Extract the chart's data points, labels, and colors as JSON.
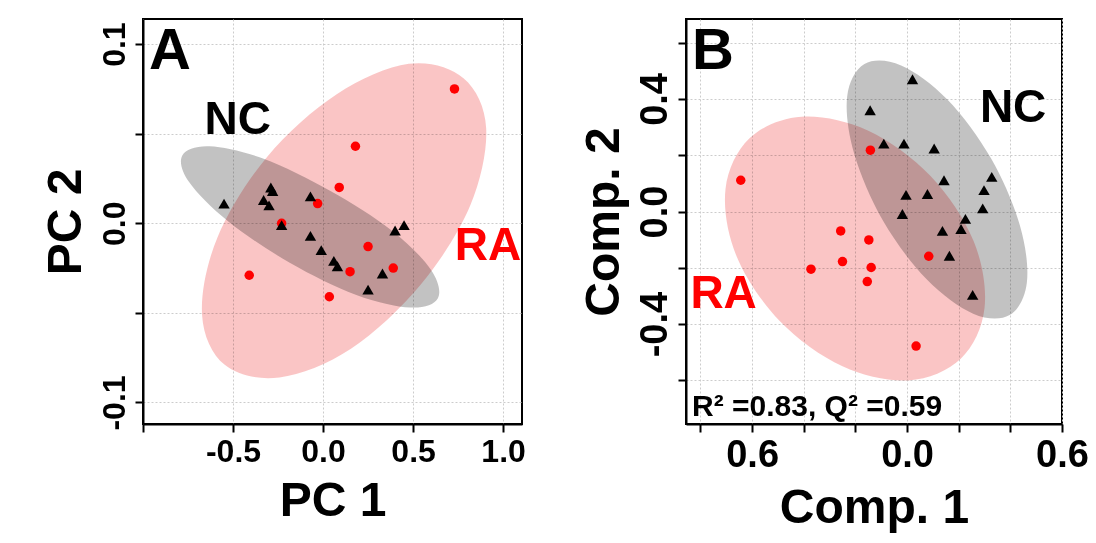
{
  "chart_data": [
    {
      "type": "scatter",
      "xlabel": "PC 1",
      "ylabel": "PC 2",
      "xlim": [
        -1.0,
        1.105
      ],
      "ylim": [
        -0.112,
        0.114
      ],
      "xticks": [
        {
          "value": -1.0,
          "label": null
        },
        -0.5,
        {
          "value": 0,
          "label": "0.0"
        },
        0.5,
        {
          "value": 1.0,
          "label": "1.0"
        }
      ],
      "yticks": [
        -0.1,
        {
          "value": -0.05,
          "label": null
        },
        {
          "value": 0,
          "label": "0.0"
        },
        {
          "value": 0.05,
          "label": null
        },
        0.1
      ],
      "grid": true,
      "annotations": [
        "A"
      ],
      "series": [
        {
          "type": "area",
          "color": "#f9b7b7",
          "x": [
            0.78,
            0.906,
            0.818,
            0.544,
            0.155,
            -0.242,
            -0.546,
            -0.672,
            -0.587,
            -0.311,
            0.076,
            0.476
          ],
          "values": [
            0.081,
            0.053,
            0.01,
            -0.034,
            -0.07,
            -0.086,
            -0.079,
            -0.051,
            -0.008,
            0.037,
            0.072,
            0.089
          ]
        },
        {
          "type": "area",
          "color": "#b3b3b3",
          "x": [
            0.637,
            0.485,
            0.185,
            -0.185,
            -0.526,
            -0.744,
            -0.781,
            -0.63,
            -0.33,
            0.041,
            0.381,
            0.6
          ],
          "values": [
            -0.042,
            -0.047,
            -0.04,
            -0.022,
            0.001,
            0.023,
            0.038,
            0.043,
            0.036,
            0.018,
            -0.004,
            -0.026
          ]
        },
        {
          "name": "RA",
          "marker": "circle",
          "color": "#ff0000",
          "x": [
            0.73,
            0.18,
            0.09,
            -0.03,
            -0.23,
            0.25,
            0.39,
            0.15,
            -0.41,
            0.035
          ],
          "values": [
            0.075,
            0.043,
            0.02,
            0.011,
            0.0,
            -0.013,
            -0.025,
            -0.027,
            -0.029,
            -0.041
          ]
        },
        {
          "name": "NC",
          "marker": "triangle",
          "color": "#000000",
          "x": [
            -0.55,
            -0.29,
            -0.28,
            -0.33,
            -0.3,
            -0.23,
            -0.07,
            -0.07,
            -0.01,
            0.06,
            0.08,
            0.4,
            0.45,
            0.33,
            0.25
          ],
          "values": [
            0.011,
            0.02,
            0.018,
            0.013,
            0.01,
            -0.001,
            0.015,
            -0.007,
            -0.015,
            -0.021,
            -0.024,
            -0.004,
            -0.001,
            -0.028,
            -0.037
          ]
        }
      ]
    },
    {
      "type": "scatter",
      "xlabel": "Comp. 1",
      "ylabel": "Comp. 2",
      "xlim": [
        -0.856,
        0.6
      ],
      "ylim": [
        -0.755,
        0.684
      ],
      "xticks": [
        {
          "value": -0.8,
          "label": null
        },
        {
          "value": -0.6,
          "label": "0.6"
        },
        {
          "value": -0.4,
          "label": null
        },
        {
          "value": -0.2,
          "label": null
        },
        {
          "value": 0,
          "label": "0.0"
        },
        {
          "value": 0.2,
          "label": null
        },
        {
          "value": 0.4,
          "label": null
        },
        0.6
      ],
      "yticks": [
        {
          "value": -0.6,
          "label": null
        },
        -0.4,
        {
          "value": -0.2,
          "label": null
        },
        {
          "value": 0,
          "label": "0.0"
        },
        {
          "value": 0.2,
          "label": null
        },
        0.4,
        {
          "value": 0.6,
          "label": null
        }
      ],
      "grid": true,
      "annotations": [
        "B",
        "R² =0.83, Q² =0.59"
      ],
      "series": [
        {
          "type": "area",
          "color": "#f9b7b7",
          "x": [
            0.208,
            0.006,
            -0.25,
            -0.494,
            -0.661,
            -0.703,
            -0.61,
            -0.409,
            -0.152,
            0.091,
            0.258,
            0.3
          ],
          "values": [
            -0.523,
            -0.6,
            -0.55,
            -0.388,
            -0.157,
            0.08,
            0.26,
            0.337,
            0.288,
            0.126,
            -0.106,
            -0.343
          ]
        },
        {
          "type": "area",
          "color": "#b3b3b3",
          "x": [
            0.397,
            0.256,
            0.076,
            -0.093,
            -0.205,
            -0.232,
            -0.165,
            -0.023,
            0.156,
            0.325,
            0.437,
            0.464
          ],
          "values": [
            -0.368,
            -0.363,
            -0.241,
            -0.033,
            0.206,
            0.408,
            0.524,
            0.519,
            0.398,
            0.189,
            -0.05,
            -0.252
          ]
        },
        {
          "name": "RA",
          "marker": "circle",
          "color": "#ff0000",
          "x": [
            -0.644,
            -0.142,
            -0.257,
            -0.148,
            -0.25,
            -0.372,
            -0.139,
            -0.154,
            0.084,
            0.035
          ],
          "values": [
            0.111,
            0.218,
            -0.069,
            -0.101,
            -0.178,
            -0.205,
            -0.199,
            -0.249,
            -0.159,
            -0.478
          ]
        },
        {
          "name": "NC",
          "marker": "triangle",
          "color": "#000000",
          "x": [
            0.021,
            -0.143,
            -0.09,
            -0.012,
            0.105,
            0.143,
            0.328,
            -0.004,
            0.079,
            0.298,
            0.293,
            -0.018,
            0.226,
            0.137,
            0.209,
            0.164,
            0.254
          ],
          "values": [
            0.47,
            0.36,
            0.241,
            0.241,
            0.224,
            0.111,
            0.123,
            0.059,
            0.062,
            0.076,
            0.011,
            -0.009,
            -0.026,
            -0.069,
            -0.062,
            -0.157,
            -0.296
          ]
        }
      ]
    }
  ]
}
